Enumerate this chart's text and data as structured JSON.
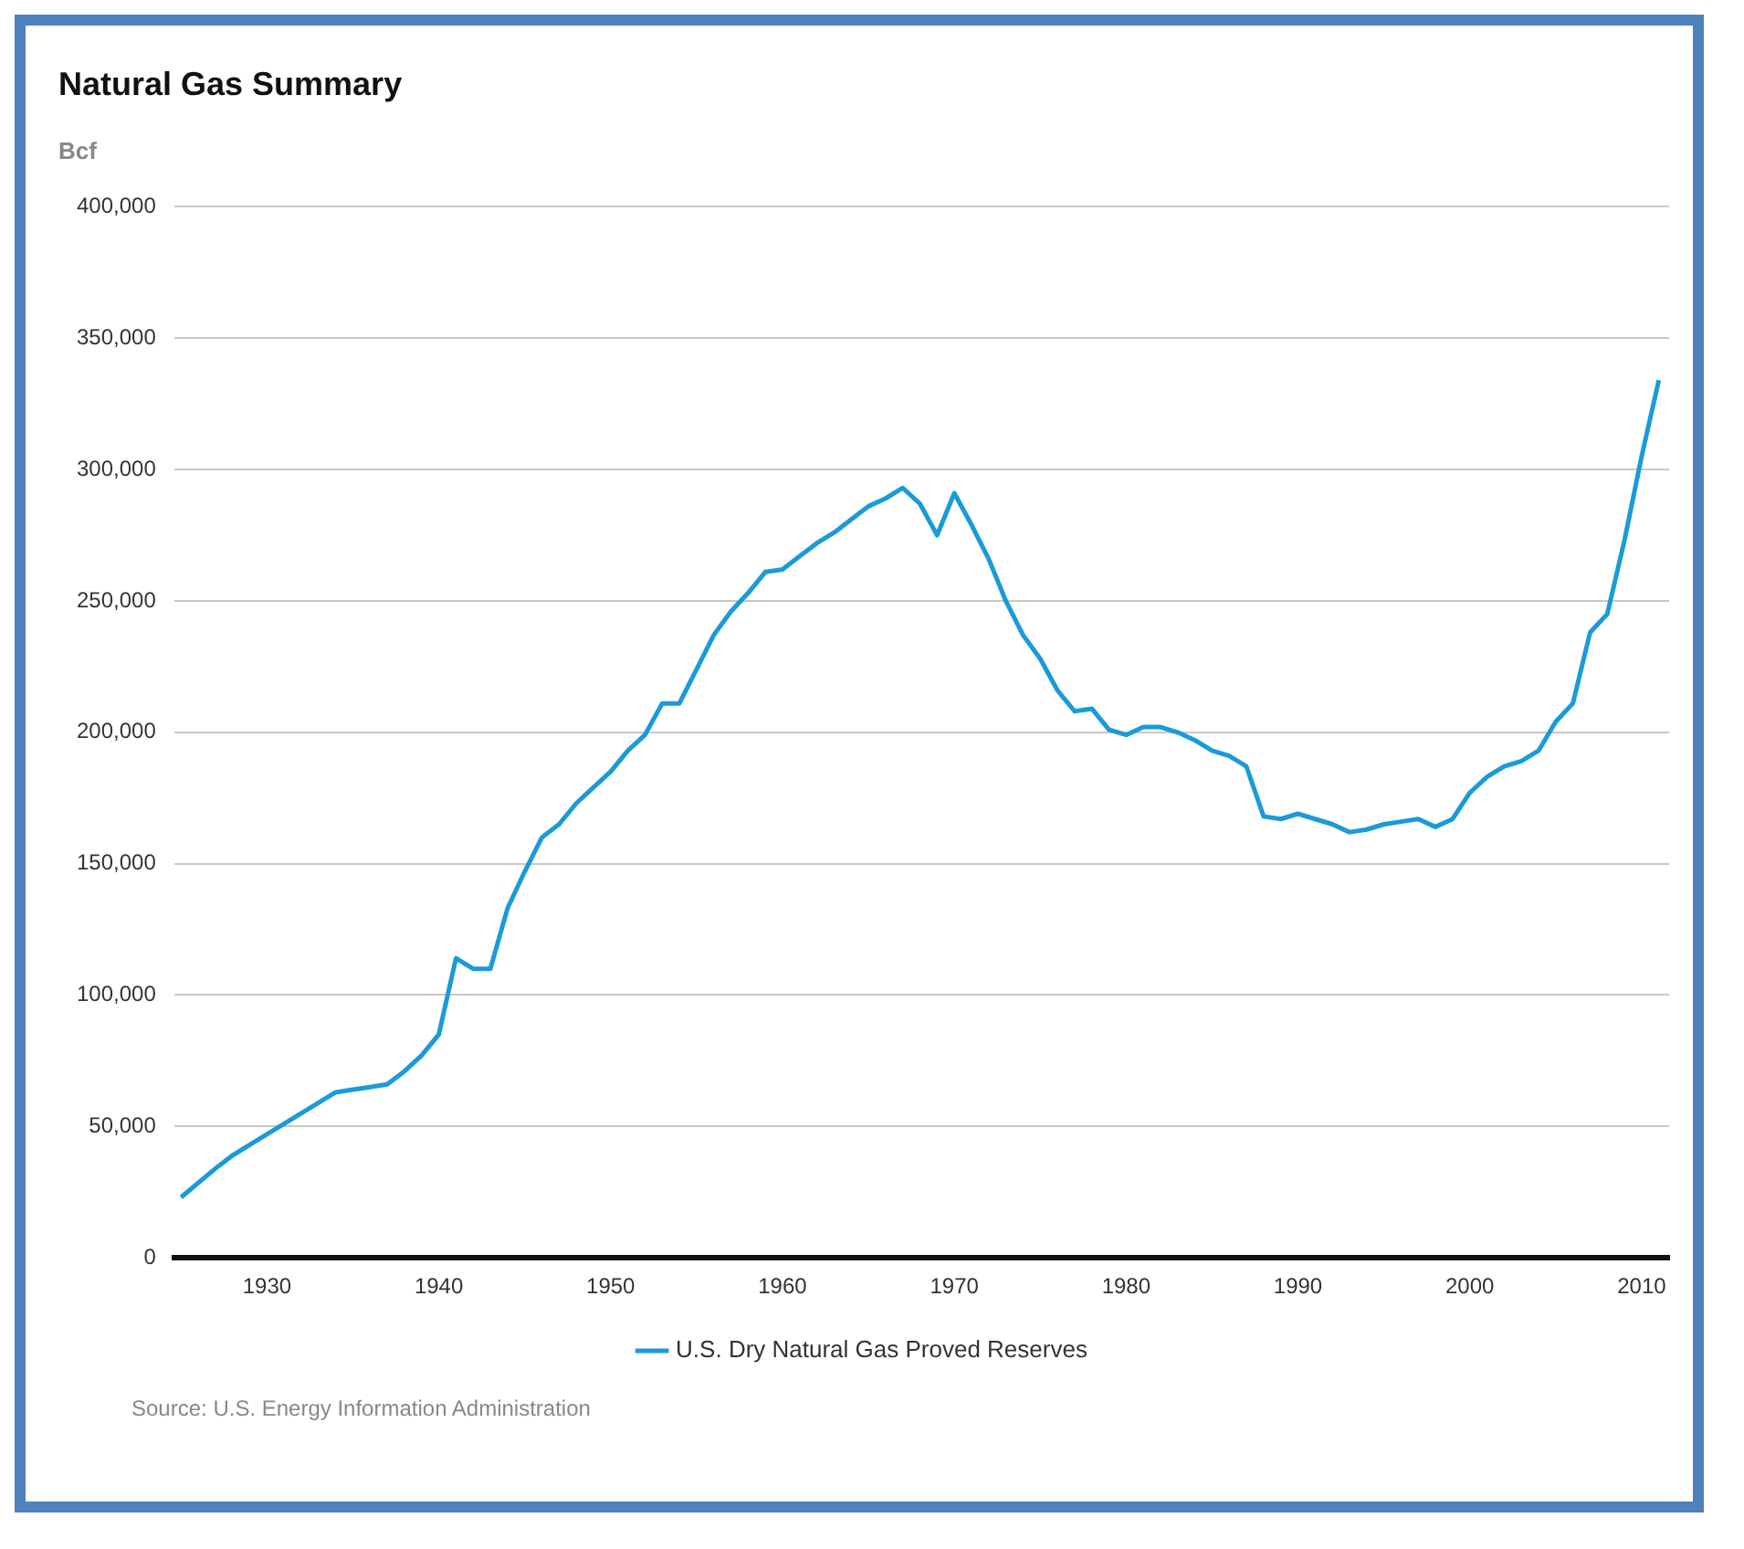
{
  "chart_data": {
    "type": "line",
    "title": "Natural Gas Summary",
    "ylabel": "Bcf",
    "x": [
      1925,
      1926,
      1927,
      1928,
      1929,
      1930,
      1931,
      1932,
      1933,
      1934,
      1935,
      1936,
      1937,
      1938,
      1939,
      1940,
      1941,
      1942,
      1943,
      1944,
      1945,
      1946,
      1947,
      1948,
      1949,
      1950,
      1951,
      1952,
      1953,
      1954,
      1955,
      1956,
      1957,
      1958,
      1959,
      1960,
      1961,
      1962,
      1963,
      1964,
      1965,
      1966,
      1967,
      1968,
      1969,
      1970,
      1971,
      1972,
      1973,
      1974,
      1975,
      1976,
      1977,
      1978,
      1979,
      1980,
      1981,
      1982,
      1983,
      1984,
      1985,
      1986,
      1987,
      1988,
      1989,
      1990,
      1991,
      1992,
      1993,
      1994,
      1995,
      1996,
      1997,
      1998,
      1999,
      2000,
      2001,
      2002,
      2003,
      2004,
      2005,
      2006,
      2007,
      2008,
      2009,
      2010,
      2011
    ],
    "series": [
      {
        "name": "U.S. Dry Natural Gas Proved Reserves",
        "color": "#1a9bd7",
        "values": [
          23000,
          28500,
          34000,
          39000,
          43000,
          47000,
          51000,
          55000,
          59000,
          63000,
          64000,
          65000,
          66000,
          71000,
          77000,
          85000,
          114000,
          110000,
          110000,
          133000,
          147000,
          160000,
          165000,
          173000,
          179000,
          185000,
          193000,
          199000,
          211000,
          211000,
          224000,
          237000,
          246000,
          253000,
          261000,
          262000,
          267000,
          272000,
          276000,
          281000,
          286000,
          289000,
          293000,
          287000,
          275000,
          291000,
          279000,
          266000,
          250000,
          237000,
          228000,
          216000,
          208000,
          209000,
          201000,
          199000,
          202000,
          202000,
          200000,
          197000,
          193000,
          191000,
          187000,
          168000,
          167000,
          169000,
          167000,
          165000,
          162000,
          163000,
          165000,
          166000,
          167000,
          164000,
          167000,
          177000,
          183000,
          187000,
          189000,
          193000,
          204000,
          211000,
          238000,
          245000,
          273000,
          305000,
          334000
        ]
      }
    ],
    "xlim": [
      1924.6,
      2011.6
    ],
    "xticks": [
      1930,
      1940,
      1950,
      1960,
      1970,
      1980,
      1990,
      2000,
      2010
    ],
    "ylim": [
      0,
      400000
    ],
    "yticks": [
      {
        "value": 0,
        "label": "0"
      },
      {
        "value": 50000,
        "label": "50,000"
      },
      {
        "value": 100000,
        "label": "100,000"
      },
      {
        "value": 150000,
        "label": "150,000"
      },
      {
        "value": 200000,
        "label": "200,000"
      },
      {
        "value": 250000,
        "label": "250,000"
      },
      {
        "value": 300000,
        "label": "300,000"
      },
      {
        "value": 350000,
        "label": "350,000"
      },
      {
        "value": 400000,
        "label": "400,000"
      }
    ],
    "grid": "y",
    "legend": "bottom",
    "marker": "none",
    "line_style": "solid",
    "annotations": [
      "Source: U.S. Energy Information Administration"
    ]
  }
}
